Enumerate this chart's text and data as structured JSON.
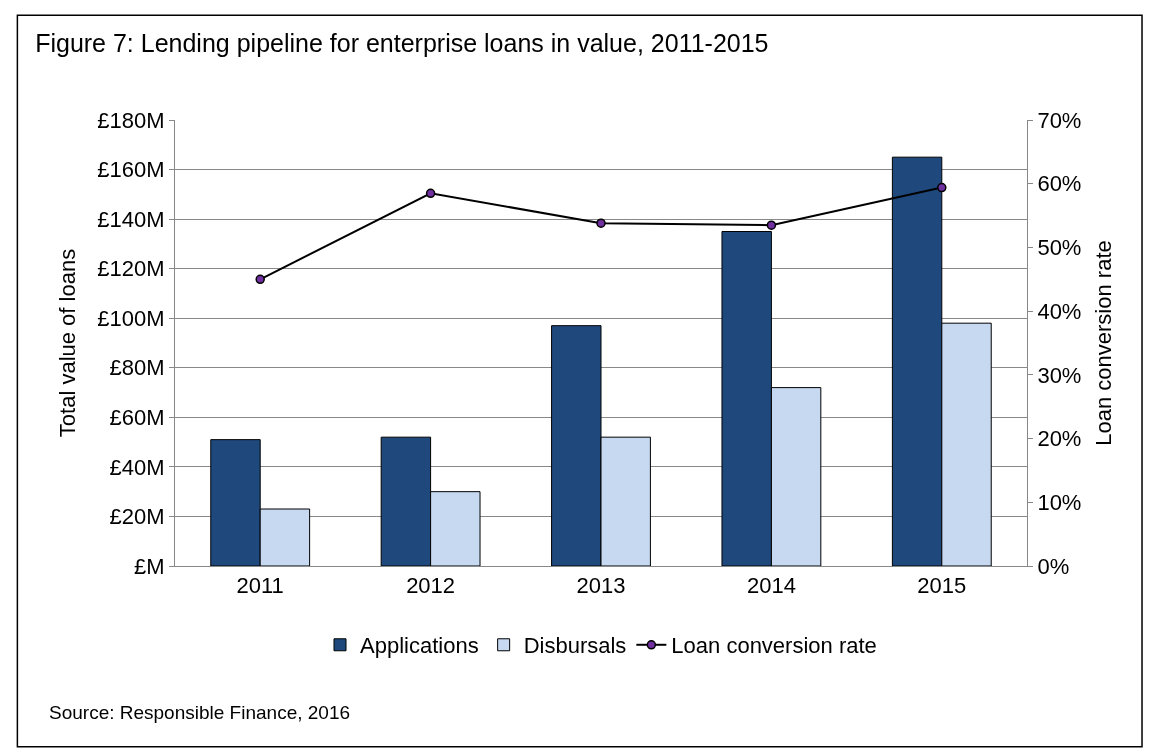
{
  "chart_data": {
    "type": "bar",
    "title": "Figure 7: Lending pipeline for enterprise loans in value, 2011-2015",
    "ylabel": "Total value of loans",
    "y2label": "Loan conversion rate",
    "categories": [
      "2011",
      "2012",
      "2013",
      "2014",
      "2015"
    ],
    "series": [
      {
        "name": "Applications",
        "color": "#1f497d",
        "values": [
          51,
          52,
          97,
          135,
          165
        ]
      },
      {
        "name": "Disbursals",
        "color": "#c6d9f1",
        "values": [
          23,
          30,
          52,
          72,
          98
        ]
      },
      {
        "name": "Loan conversion rate",
        "type": "line",
        "axis": "y2",
        "color": "#000000",
        "marker": "circle",
        "values": [
          45,
          58.5,
          53.8,
          53.5,
          59.4
        ]
      }
    ],
    "ylim": [
      0,
      180
    ],
    "yticks": [
      {
        "value": 0,
        "label": "£M"
      },
      {
        "value": 20,
        "label": "£20M"
      },
      {
        "value": 40,
        "label": "£40M"
      },
      {
        "value": 60,
        "label": "£60M"
      },
      {
        "value": 80,
        "label": "£80M"
      },
      {
        "value": 100,
        "label": "£100M"
      },
      {
        "value": 120,
        "label": "£120M"
      },
      {
        "value": 140,
        "label": "£140M"
      },
      {
        "value": 160,
        "label": "£160M"
      },
      {
        "value": 180,
        "label": "£180M"
      }
    ],
    "y2lim": [
      0,
      70
    ],
    "y2ticks": [
      {
        "value": 0,
        "label": "0%"
      },
      {
        "value": 10,
        "label": "10%"
      },
      {
        "value": 20,
        "label": "20%"
      },
      {
        "value": 30,
        "label": "30%"
      },
      {
        "value": 40,
        "label": "40%"
      },
      {
        "value": 50,
        "label": "50%"
      },
      {
        "value": 60,
        "label": "60%"
      },
      {
        "value": 70,
        "label": "70%"
      }
    ],
    "grid": "y",
    "legend": "bottom",
    "annotations": [
      "Source: Responsible Finance, 2016"
    ]
  }
}
